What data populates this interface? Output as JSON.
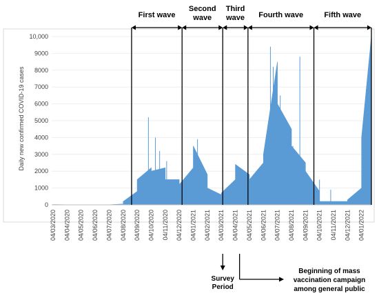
{
  "chart_data": {
    "type": "area",
    "ylabel": "Daily new confirmed COVID-19 cases",
    "xlabel": "",
    "ylim": [
      0,
      11000
    ],
    "y_ticks": [
      0,
      1000,
      2000,
      3000,
      4000,
      5000,
      6000,
      7000,
      8000,
      9000,
      10000
    ],
    "y_tick_labels": [
      "0",
      "1000",
      "2000",
      "3000",
      "4000",
      "5000",
      "6000",
      "7000",
      "8000",
      "9000",
      "10,000"
    ],
    "x_tick_labels": [
      "04/03/2020",
      "04/04/2020",
      "04/05/2020",
      "04/06/2020",
      "04/07/2020",
      "04/08/2020",
      "04/09/2020",
      "04/10/2020",
      "04/11/2020",
      "04/12/2020",
      "04/01/2021",
      "04/02/2021",
      "04/03/2021",
      "04/04/2021",
      "04/05/2021",
      "04/06/2021",
      "04/07/2021",
      "04/08/2021",
      "04/09/2021",
      "04/10/2021",
      "04/11/2021",
      "04/12/2021",
      "04/01/2022"
    ],
    "color": "#5b9bd5",
    "series": [
      {
        "name": "",
        "x": [
          "04/03/2020",
          "04/04/2020",
          "04/05/2020",
          "04/06/2020",
          "04/07/2020",
          "04/08/2020",
          "04/08/2020",
          "04/09/2020",
          "04/09/2020",
          "04/10/2020",
          "04/10/2020",
          "04/11/2020",
          "04/11/2020",
          "04/12/2020",
          "04/12/2020",
          "04/01/2021",
          "04/01/2021",
          "04/02/2021",
          "04/02/2021",
          "04/03/2021",
          "04/03/2021",
          "04/04/2021",
          "04/04/2021",
          "04/05/2021",
          "04/05/2021",
          "04/06/2021",
          "04/06/2021",
          "04/07/2021",
          "04/07/2021",
          "04/08/2021",
          "04/08/2021",
          "04/09/2021",
          "04/09/2021",
          "04/10/2021",
          "04/10/2021",
          "04/11/2021",
          "04/11/2021",
          "04/12/2021",
          "04/12/2021",
          "04/01/2022",
          "04/01/2022",
          "end"
        ],
        "values": [
          20,
          10,
          10,
          10,
          10,
          50,
          200,
          800,
          1500,
          2200,
          2000,
          2200,
          1500,
          1500,
          1200,
          2200,
          3500,
          1800,
          1000,
          600,
          700,
          1500,
          2400,
          1800,
          1500,
          2500,
          3000,
          8500,
          6000,
          4500,
          3500,
          2500,
          2000,
          800,
          200,
          200,
          200,
          200,
          300,
          1000,
          4000,
          10000
        ]
      }
    ],
    "waves": [
      {
        "label": "First wave",
        "start": 5.6,
        "end": 9.2
      },
      {
        "label": "Second wave",
        "start": 9.2,
        "end": 12.1
      },
      {
        "label": "Third wave",
        "start": 12.1,
        "end": 13.9
      },
      {
        "label": "Fourth wave",
        "start": 13.9,
        "end": 18.6
      },
      {
        "label": "Fifth wave",
        "start": 18.6,
        "end": 22.7
      }
    ],
    "annotations": [
      {
        "id": "survey",
        "text_lines": [
          "Survey",
          "Period"
        ]
      },
      {
        "id": "vaccination",
        "text_lines": [
          "Beginning of mass",
          "vaccination campaign",
          "among general public"
        ]
      }
    ]
  }
}
